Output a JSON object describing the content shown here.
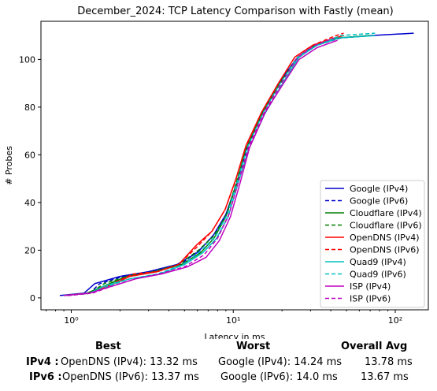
{
  "chart_data": {
    "type": "line",
    "title": "December_2024: TCP Latency Comparison with Fastly (mean)",
    "xlabel": "Latency in ms",
    "ylabel": "# Probes",
    "xscale": "log",
    "xlim": [
      0.65,
      160
    ],
    "ylim": [
      -5,
      116
    ],
    "x_ticks": [
      {
        "value": 1,
        "label": "10⁰"
      },
      {
        "value": 10,
        "label": "10¹"
      },
      {
        "value": 100,
        "label": "10²"
      }
    ],
    "y_ticks": [
      0,
      20,
      40,
      60,
      80,
      100
    ],
    "grid": false,
    "legend_position": "lower-right",
    "series": [
      {
        "name": "Google (IPv4)",
        "color": "#0000cc",
        "dash": "solid",
        "x": [
          0.85,
          1.2,
          1.4,
          2.0,
          3.0,
          4.5,
          6.0,
          7.5,
          9.0,
          10.5,
          12.0,
          15.0,
          19.0,
          25.0,
          32.0,
          45.0,
          70.0,
          130.0
        ],
        "y": [
          1,
          2,
          6,
          9,
          11,
          14,
          19,
          26,
          35,
          48,
          62,
          77,
          90,
          101,
          106,
          109,
          110,
          111
        ]
      },
      {
        "name": "Google (IPv6)",
        "color": "#0000cc",
        "dash": "dashed",
        "x": [
          0.9,
          1.3,
          1.5,
          2.1,
          3.2,
          4.7,
          6.2,
          7.7,
          9.2,
          10.7,
          12.3,
          15.5,
          19.5,
          25.0,
          33.0,
          46.0,
          72.0
        ],
        "y": [
          1,
          2,
          6,
          9,
          11,
          14,
          20,
          27,
          36,
          50,
          64,
          79,
          91,
          101,
          106,
          109,
          110
        ]
      },
      {
        "name": "Cloudflare (IPv4)",
        "color": "#008000",
        "dash": "solid",
        "x": [
          0.9,
          1.25,
          1.6,
          2.2,
          3.3,
          4.8,
          6.3,
          7.6,
          9.0,
          10.4,
          11.9,
          15.0,
          19.0,
          24.5,
          32.0,
          44.0,
          70.0
        ],
        "y": [
          1,
          2,
          5,
          9,
          11,
          14,
          19,
          25,
          34,
          47,
          62,
          77,
          89,
          100,
          106,
          109,
          110
        ]
      },
      {
        "name": "Cloudflare (IPv6)",
        "color": "#008000",
        "dash": "dashed",
        "x": [
          0.95,
          1.3,
          1.6,
          2.2,
          3.2,
          4.6,
          6.1,
          7.6,
          9.1,
          10.5,
          12.1,
          15.2,
          19.3,
          25.0,
          33.0,
          45.0
        ],
        "y": [
          1,
          2,
          6,
          9,
          11,
          14,
          20,
          26,
          35,
          49,
          63,
          78,
          90,
          101,
          106,
          109
        ]
      },
      {
        "name": "OpenDNS (IPv4)",
        "color": "#ff0000",
        "dash": "solid",
        "x": [
          0.9,
          1.3,
          1.7,
          2.3,
          3.4,
          4.6,
          5.9,
          7.4,
          8.9,
          10.4,
          12.0,
          15.0,
          19.0,
          24.0,
          31.0,
          42.0,
          48.0
        ],
        "y": [
          1,
          2,
          5,
          9,
          11,
          14,
          22,
          28,
          37,
          50,
          64,
          78,
          90,
          101,
          106,
          109,
          110
        ]
      },
      {
        "name": "OpenDNS (IPv6)",
        "color": "#ff0000",
        "dash": "dashed",
        "x": [
          0.95,
          1.35,
          1.8,
          2.4,
          3.4,
          4.6,
          5.9,
          7.4,
          8.9,
          10.3,
          11.9,
          15.0,
          19.0,
          24.0,
          31.0,
          43.0,
          48.0
        ],
        "y": [
          1,
          2,
          6,
          10,
          11,
          14,
          21,
          28,
          37,
          49,
          63,
          78,
          90,
          101,
          106,
          110,
          111
        ]
      },
      {
        "name": "Quad9 (IPv4)",
        "color": "#00bfbf",
        "dash": "solid",
        "x": [
          0.9,
          1.3,
          1.6,
          2.3,
          3.5,
          5.0,
          6.5,
          7.9,
          9.3,
          10.7,
          12.4,
          15.6,
          19.8,
          25.5,
          33.0,
          45.0,
          75.0
        ],
        "y": [
          1,
          2,
          5,
          8,
          10,
          14,
          19,
          25,
          34,
          48,
          62,
          77,
          89,
          101,
          106,
          109,
          110
        ]
      },
      {
        "name": "Quad9 (IPv6)",
        "color": "#00bfbf",
        "dash": "dashed",
        "x": [
          0.95,
          1.35,
          1.7,
          2.3,
          3.4,
          4.9,
          6.4,
          7.8,
          9.2,
          10.6,
          12.2,
          15.4,
          19.5,
          25.0,
          33.0,
          46.0,
          75.0
        ],
        "y": [
          1,
          2,
          5,
          8,
          10,
          14,
          20,
          26,
          35,
          49,
          63,
          78,
          90,
          101,
          106,
          110,
          111
        ]
      },
      {
        "name": "ISP (IPv4)",
        "color": "#bf00bf",
        "dash": "solid",
        "x": [
          0.9,
          1.3,
          1.8,
          2.5,
          3.6,
          5.2,
          6.8,
          8.2,
          9.6,
          11.0,
          12.6,
          15.8,
          20.0,
          25.5,
          33.0,
          44.0
        ],
        "y": [
          1,
          2,
          5,
          8,
          10,
          13,
          17,
          24,
          34,
          48,
          63,
          78,
          89,
          100,
          105,
          108
        ]
      },
      {
        "name": "ISP (IPv6)",
        "color": "#bf00bf",
        "dash": "dashed",
        "x": [
          0.95,
          1.35,
          1.8,
          2.5,
          3.5,
          5.0,
          6.6,
          8.0,
          9.4,
          10.8,
          12.4,
          15.6,
          19.8,
          25.0,
          32.0,
          42.0
        ],
        "y": [
          1,
          2,
          5,
          8,
          10,
          13,
          18,
          25,
          35,
          49,
          63,
          78,
          90,
          101,
          106,
          109
        ]
      }
    ]
  },
  "summary": {
    "headers": {
      "best": "Best",
      "worst": "Worst",
      "avg": "Overall Avg"
    },
    "rows": [
      {
        "label": "IPv4 :",
        "best": "OpenDNS (IPv4): 13.32 ms",
        "worst": "Google (IPv4): 14.24 ms",
        "avg": "13.78 ms"
      },
      {
        "label": "IPv6 :",
        "best": "OpenDNS (IPv6): 13.37 ms",
        "worst": "Google (IPv6): 14.0 ms",
        "avg": "13.67 ms"
      }
    ]
  }
}
